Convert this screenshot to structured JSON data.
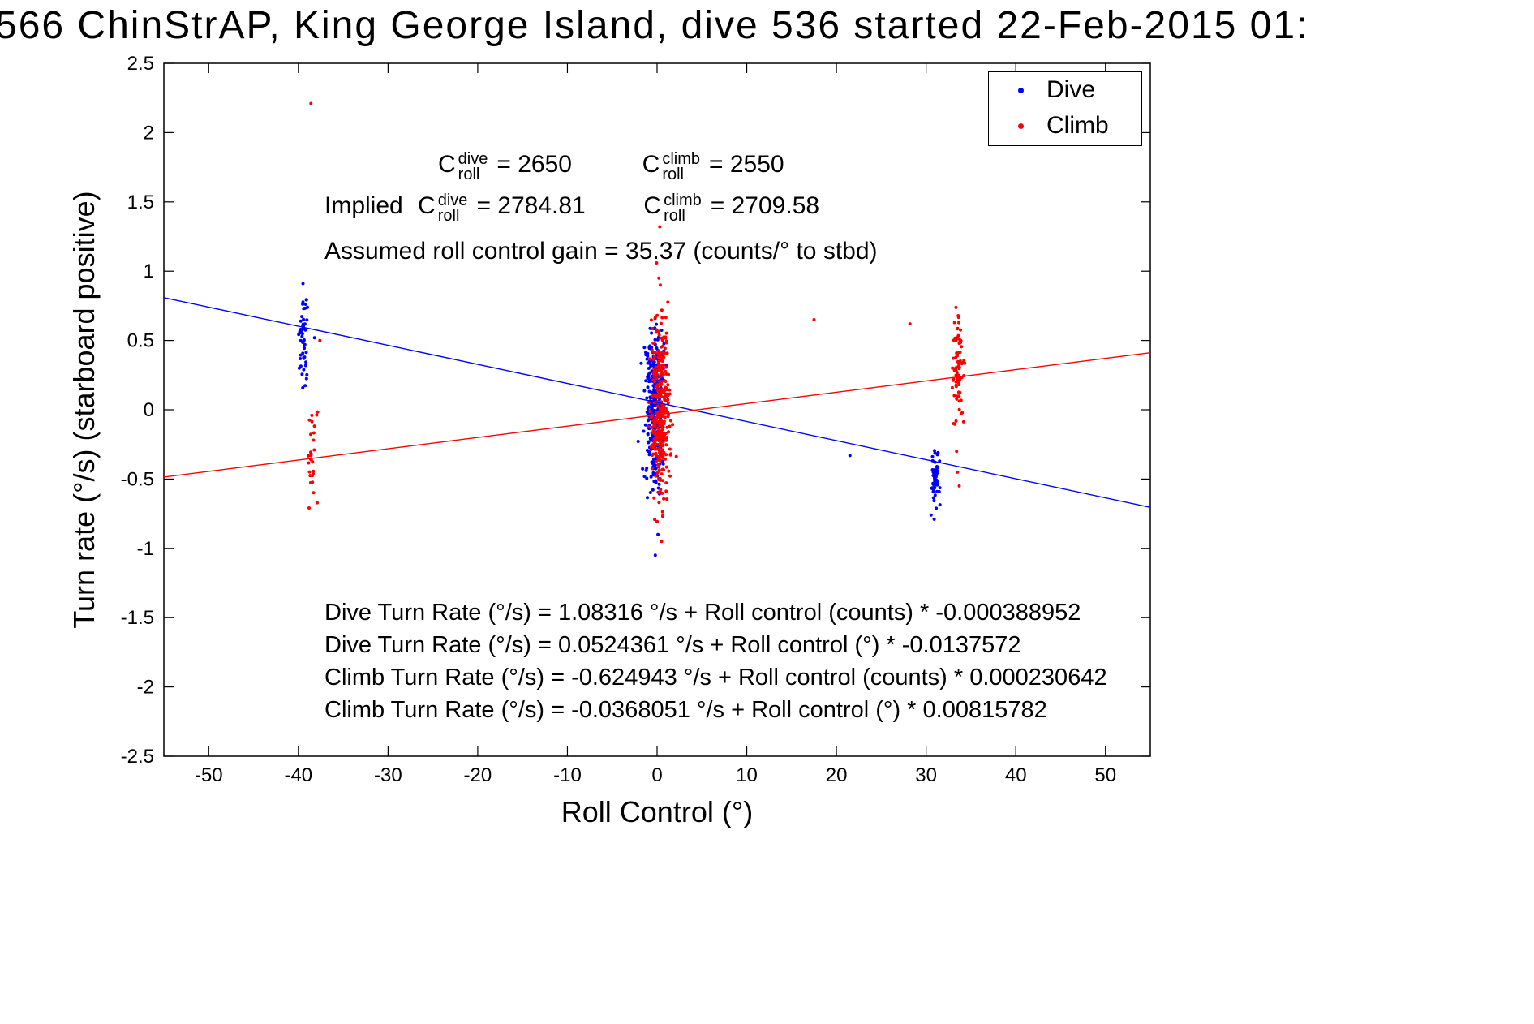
{
  "title": "566 ChinStrAP, King George Island, dive 536 started 22-Feb-2015 01:",
  "axes": {
    "xlabel": "Roll Control (°)",
    "ylabel": "Turn rate (°/s) (starboard positive)",
    "xticks": [
      -50,
      -40,
      -30,
      -20,
      -10,
      0,
      10,
      20,
      30,
      40,
      50
    ],
    "xtick_labels": [
      "-50",
      "-40",
      "-30",
      "-20",
      "-10",
      "0",
      "10",
      "20",
      "30",
      "40",
      "50"
    ],
    "yticks": [
      -2.5,
      -2,
      -1.5,
      -1,
      -0.5,
      0,
      0.5,
      1,
      1.5,
      2,
      2.5
    ],
    "ytick_labels": [
      "-2.5",
      "-2",
      "-1.5",
      "-1",
      "-0.5",
      "0",
      "0.5",
      "1",
      "1.5",
      "2",
      "2.5"
    ]
  },
  "legend": [
    {
      "label": "Dive",
      "color": "#0000ff"
    },
    {
      "label": "Climb",
      "color": "#ff0000"
    }
  ],
  "annotations": {
    "c_symbol": "C",
    "sub_roll": "roll",
    "sup_dive": "dive",
    "sup_climb": "climb",
    "line1": {
      "dive_value": "= 2650",
      "climb_value": "= 2550"
    },
    "line2": {
      "prefix": "Implied",
      "dive_value": "= 2784.81",
      "climb_value": "= 2709.58"
    },
    "gain_line": "Assumed roll control gain = 35.37 (counts/° to stbd)"
  },
  "equations": [
    "Dive Turn Rate (°/s) = 1.08316 °/s + Roll control (counts) * -0.000388952",
    "Dive Turn Rate (°/s) = 0.0524361 °/s + Roll control (°) * -0.0137572",
    "Climb Turn Rate (°/s) = -0.624943 °/s + Roll control (counts) * 0.000230642",
    "Climb Turn Rate (°/s) = -0.0368051 °/s + Roll control (°) * 0.00815782"
  ],
  "chart_data": {
    "type": "scatter",
    "title": "566 ChinStrAP, King George Island, dive 536 started 22-Feb-2015 01:",
    "xlabel": "Roll Control (°)",
    "ylabel": "Turn rate (°/s) (starboard positive)",
    "xlim": [
      -55,
      55
    ],
    "ylim": [
      -2.5,
      2.5
    ],
    "grid": false,
    "legend_position": "top-right",
    "annotations_text": [
      "C_roll^dive = 2650",
      "C_roll^climb = 2550",
      "Implied C_roll^dive = 2784.81",
      "Implied C_roll^climb = 2709.58",
      "Assumed roll control gain = 35.37 (counts/° to stbd)"
    ],
    "series": [
      {
        "name": "Dive",
        "color": "#0000ff",
        "fit": {
          "intercept": 0.0524361,
          "slope": -0.0137572
        },
        "clusters": [
          {
            "cx": -39.4,
            "sx": 0.25,
            "my": 0.55,
            "sy": 0.2,
            "ymin": 0.02,
            "ymax": 0.93,
            "n": 55
          },
          {
            "cx": -0.3,
            "sx": 0.45,
            "my": 0.08,
            "sy": 0.3,
            "ymin": -0.8,
            "ymax": 0.62,
            "n": 330
          },
          {
            "cx": 31.0,
            "sx": 0.25,
            "my": -0.5,
            "sy": 0.13,
            "ymin": -0.78,
            "ymax": -0.25,
            "n": 55
          }
        ],
        "extra_points": [
          [
            -0.2,
            -1.05
          ],
          [
            0.1,
            -0.9
          ],
          [
            21.5,
            -0.33
          ],
          [
            30.9,
            -0.79
          ],
          [
            -38.2,
            0.52
          ]
        ]
      },
      {
        "name": "Climb",
        "color": "#ff0000",
        "fit": {
          "intercept": -0.0368051,
          "slope": 0.00815782
        },
        "clusters": [
          {
            "cx": -38.5,
            "sx": 0.3,
            "my": -0.35,
            "sy": 0.2,
            "ymin": -0.73,
            "ymax": 0.12,
            "n": 28
          },
          {
            "cx": 0.35,
            "sx": 0.5,
            "my": -0.02,
            "sy": 0.33,
            "ymin": -0.85,
            "ymax": 0.88,
            "n": 330
          },
          {
            "cx": 33.6,
            "sx": 0.3,
            "my": 0.3,
            "sy": 0.18,
            "ymin": -0.32,
            "ymax": 0.86,
            "n": 80
          }
        ],
        "extra_points": [
          [
            -38.6,
            2.21
          ],
          [
            0.3,
            1.32
          ],
          [
            -0.05,
            1.06
          ],
          [
            0.2,
            0.95
          ],
          [
            0.35,
            0.9
          ],
          [
            0.5,
            -0.95
          ],
          [
            1.4,
            -0.12
          ],
          [
            1.2,
            0.18
          ],
          [
            17.5,
            0.65
          ],
          [
            28.2,
            0.62
          ],
          [
            33.5,
            -0.45
          ],
          [
            33.7,
            -0.55
          ],
          [
            33.4,
            -0.3
          ],
          [
            -37.6,
            0.5
          ]
        ]
      }
    ]
  }
}
